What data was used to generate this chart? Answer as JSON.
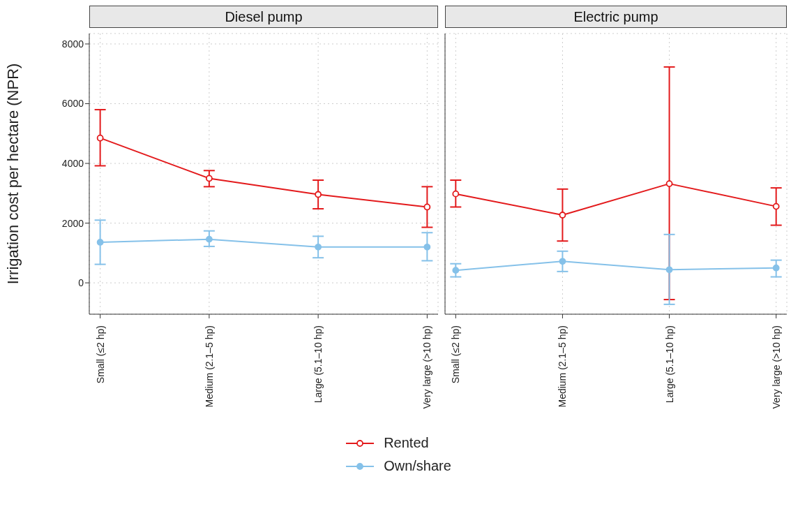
{
  "chart_data": [
    {
      "type": "line",
      "title": "Diesel pump",
      "ylabel": "Irrigation cost per hectare (NPR)",
      "categories": [
        "Small (≤2 hp)",
        "Medium (2.1–5 hp)",
        "Large (5.1–10 hp)",
        "Very large (>10 hp)"
      ],
      "ylim": [
        -1050,
        8350
      ],
      "yticks": [
        0,
        2000,
        4000,
        6000,
        8000
      ],
      "grid": true,
      "legend": "bottom",
      "marker": "circle",
      "line_style": "solid",
      "series": [
        {
          "name": "Rented",
          "color": "#e31a1c",
          "values": [
            4850,
            3500,
            2960,
            2540
          ],
          "errors": [
            [
              3920,
              5800
            ],
            [
              3220,
              3760
            ],
            [
              2480,
              3440
            ],
            [
              1860,
              3220
            ]
          ]
        },
        {
          "name": "Own/share",
          "color": "#85c1e9",
          "values": [
            1360,
            1460,
            1200,
            1200
          ],
          "errors": [
            [
              620,
              2100
            ],
            [
              1220,
              1740
            ],
            [
              840,
              1560
            ],
            [
              740,
              1680
            ]
          ]
        }
      ]
    },
    {
      "type": "line",
      "title": "Electric pump",
      "categories": [
        "Small (≤2 hp)",
        "Medium (2.1–5 hp)",
        "Large (5.1–10 hp)",
        "Very large (>10 hp)"
      ],
      "ylim": [
        -1050,
        8350
      ],
      "yticks": [
        0,
        2000,
        4000,
        6000,
        8000
      ],
      "tick_labels": "x",
      "grid": true,
      "marker": "circle",
      "line_style": "solid",
      "series": [
        {
          "color": "#e31a1c",
          "values": [
            2980,
            2270,
            3320,
            2560
          ],
          "errors": [
            [
              2540,
              3440
            ],
            [
              1400,
              3140
            ],
            [
              -560,
              7230
            ],
            [
              1930,
              3180
            ]
          ]
        },
        {
          "color": "#85c1e9",
          "values": [
            420,
            720,
            440,
            500
          ],
          "errors": [
            [
              200,
              640
            ],
            [
              380,
              1060
            ],
            [
              -720,
              1620
            ],
            [
              200,
              760
            ]
          ]
        }
      ]
    }
  ]
}
